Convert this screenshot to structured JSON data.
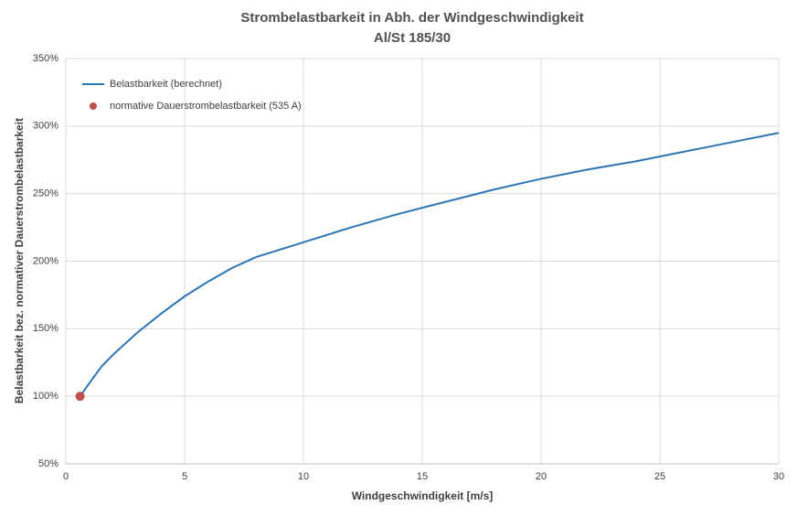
{
  "chart_data": {
    "type": "line",
    "title": "Strombelastbarkeit in Abh. der Windgeschwindigkeit",
    "subtitle": "Al/St 185/30",
    "x_label": "Windgeschwindigkeit [m/s]",
    "y_label": "Belastbarkeit bez. normativer Dauerstrombelastbarkeit",
    "xlim": [
      0,
      30
    ],
    "xticks": [
      0,
      5,
      10,
      15,
      20,
      25,
      30
    ],
    "ylim": [
      50,
      350
    ],
    "yticks": [
      {
        "value": 50,
        "label": "50%"
      },
      {
        "value": 100,
        "label": "100%"
      },
      {
        "value": 150,
        "label": "150%"
      },
      {
        "value": 200,
        "label": "200%"
      },
      {
        "value": 250,
        "label": "250%"
      },
      {
        "value": 300,
        "label": "300%"
      },
      {
        "value": 350,
        "label": "350%"
      }
    ],
    "grid": true,
    "legend": "upper left",
    "series": [
      {
        "name": "Belastbarkeit (berechnet)",
        "type": "line",
        "color": "#2e75b6",
        "x": [
          0.6,
          1,
          1.5,
          2,
          3,
          4,
          5,
          6,
          7,
          8,
          10,
          12,
          14,
          16,
          18,
          20,
          22,
          24,
          26,
          28,
          30
        ],
        "values": [
          100,
          110,
          122,
          131,
          147,
          161,
          174,
          185,
          195,
          203,
          214,
          225,
          235,
          244,
          253,
          261,
          268,
          274,
          281,
          288,
          295
        ]
      },
      {
        "name": "normative Dauerstrombelastbarkeit (535 A)",
        "type": "scatter",
        "color": "#c0504d",
        "x": [
          0.6
        ],
        "values": [
          100
        ]
      }
    ]
  }
}
